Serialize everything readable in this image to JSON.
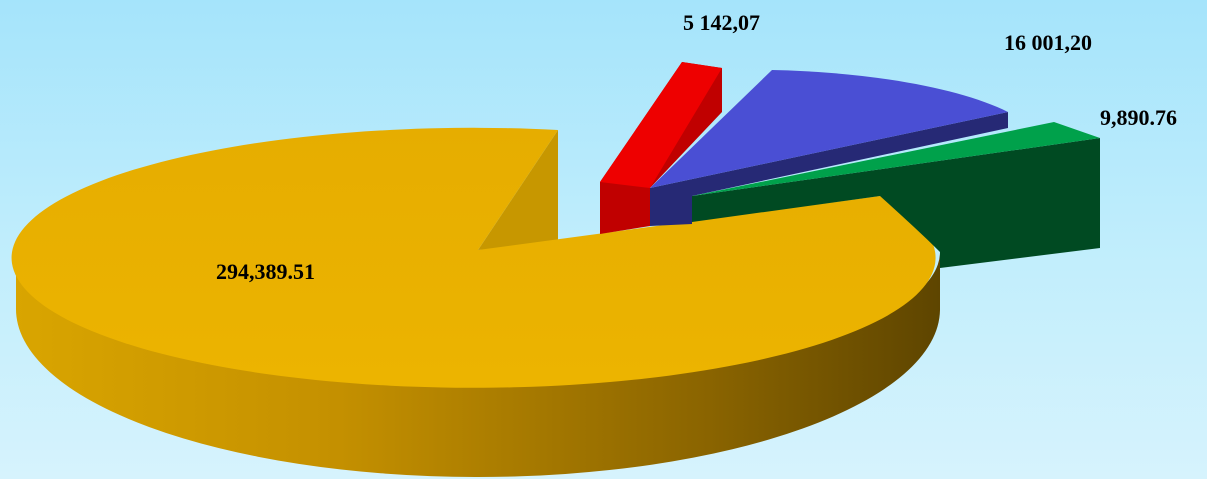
{
  "chart_data": {
    "type": "pie",
    "style": "3d-exploded",
    "title": "",
    "legend": "none",
    "slices": [
      {
        "value": 294389.51,
        "label": "294,389.51",
        "color": "#e8b000",
        "side_light": "#f0c21e",
        "side_dark": "#5b4400"
      },
      {
        "value": 5142.07,
        "label": "5 142,07",
        "color": "#ee0000",
        "side_light": "#c40000",
        "side_dark": "#8a0000"
      },
      {
        "value": 16001.2,
        "label": "16 001,20",
        "color": "#4a4fd4",
        "side_light": "#2f3294",
        "side_dark": "#1c1f66"
      },
      {
        "value": 9890.76,
        "label": "9,890.76",
        "color": "#00a14b",
        "side_light": "#035a2c",
        "side_dark": "#00401d"
      }
    ]
  }
}
